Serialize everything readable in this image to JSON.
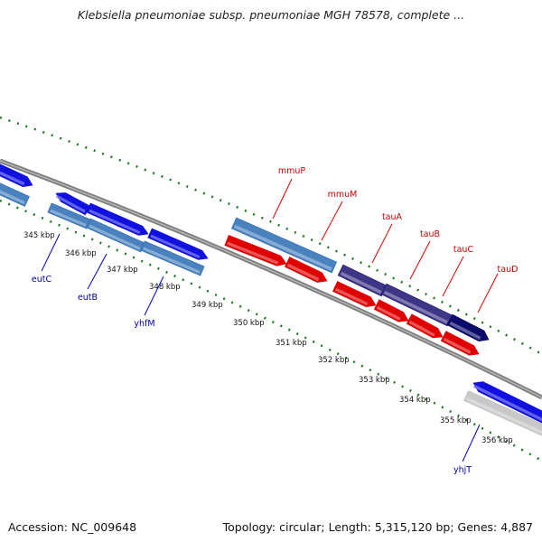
{
  "title": "Klebsiella pneumoniae subsp. pneumoniae MGH 78578, complete ...",
  "footer": {
    "accession": "Accession: NC_009648",
    "summary": "Topology: circular; Length: 5,315,120 bp; Genes: 4,887"
  },
  "colors": {
    "backbone": "#8a8a8a",
    "tick_green": "#1e7a1e",
    "blue": "#1010e0",
    "steel": "#4a82bf",
    "red": "#e00000",
    "purple": "#3d3585",
    "navy": "#0b0b6b",
    "gray": "#c8c8c8",
    "label_red": "#cc0000",
    "label_blue": "#000099"
  },
  "scale": {
    "ticks": [
      {
        "label": "345 kbp"
      },
      {
        "label": "346 kbp"
      },
      {
        "label": "347 kbp"
      },
      {
        "label": "348 kbp"
      },
      {
        "label": "349 kbp"
      },
      {
        "label": "350 kbp"
      },
      {
        "label": "351 kbp"
      },
      {
        "label": "352 kbp"
      },
      {
        "label": "353 kbp"
      },
      {
        "label": "354 kbp"
      },
      {
        "label": "355 kbp"
      },
      {
        "label": "356 kbp"
      }
    ]
  },
  "genes": {
    "labels": [
      {
        "name": "mmuP",
        "strand": "forward"
      },
      {
        "name": "mmuM",
        "strand": "forward"
      },
      {
        "name": "tauA",
        "strand": "forward"
      },
      {
        "name": "tauB",
        "strand": "forward"
      },
      {
        "name": "tauC",
        "strand": "forward"
      },
      {
        "name": "tauD",
        "strand": "forward"
      },
      {
        "name": "eutC",
        "strand": "reverse"
      },
      {
        "name": "eutB",
        "strand": "reverse"
      },
      {
        "name": "yhfM",
        "strand": "reverse"
      },
      {
        "name": "yhjT",
        "strand": "reverse"
      }
    ]
  }
}
